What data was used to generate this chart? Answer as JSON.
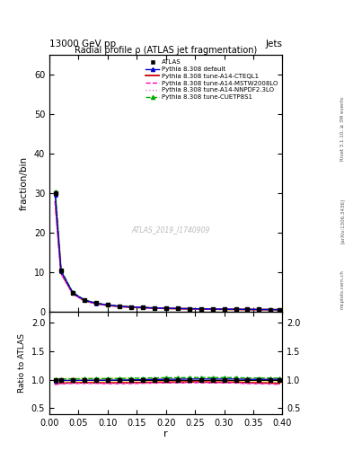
{
  "title": "Radial profile ρ (ATLAS jet fragmentation)",
  "top_left_label": "13000 GeV pp",
  "top_right_label": "Jets",
  "xlabel": "r",
  "ylabel_main": "fraction/bin",
  "ylabel_ratio": "Ratio to ATLAS",
  "watermark": "ATLAS_2019_I1740909",
  "rivet_label": "Rivet 3.1.10, ≥ 3M events",
  "arxiv_label": "[arXiv:1306.3436]",
  "mcplots_label": "mcplots.cern.ch",
  "r_values": [
    0.01,
    0.02,
    0.04,
    0.06,
    0.08,
    0.1,
    0.12,
    0.14,
    0.16,
    0.18,
    0.2,
    0.22,
    0.24,
    0.26,
    0.28,
    0.3,
    0.32,
    0.34,
    0.36,
    0.38,
    0.395
  ],
  "data_y": [
    30.0,
    10.3,
    4.8,
    2.9,
    2.1,
    1.65,
    1.35,
    1.15,
    1.0,
    0.9,
    0.82,
    0.76,
    0.7,
    0.65,
    0.62,
    0.58,
    0.55,
    0.53,
    0.51,
    0.49,
    0.47
  ],
  "data_err": [
    0.5,
    0.15,
    0.08,
    0.05,
    0.035,
    0.03,
    0.025,
    0.02,
    0.018,
    0.015,
    0.014,
    0.012,
    0.011,
    0.01,
    0.01,
    0.009,
    0.009,
    0.008,
    0.008,
    0.007,
    0.007
  ],
  "pythia_default_y": [
    29.5,
    10.2,
    4.75,
    2.88,
    2.09,
    1.64,
    1.345,
    1.148,
    1.005,
    0.905,
    0.828,
    0.768,
    0.71,
    0.66,
    0.628,
    0.588,
    0.558,
    0.534,
    0.514,
    0.494,
    0.474
  ],
  "pythia_cteql1_y": [
    27.8,
    9.7,
    4.55,
    2.75,
    1.99,
    1.56,
    1.28,
    1.09,
    0.953,
    0.86,
    0.786,
    0.729,
    0.674,
    0.626,
    0.594,
    0.556,
    0.527,
    0.503,
    0.483,
    0.462,
    0.44
  ],
  "pythia_mstw_y": [
    27.5,
    9.6,
    4.5,
    2.72,
    1.97,
    1.54,
    1.26,
    1.075,
    0.94,
    0.848,
    0.775,
    0.718,
    0.664,
    0.617,
    0.585,
    0.548,
    0.519,
    0.495,
    0.475,
    0.454,
    0.433
  ],
  "pythia_nnpdf_y": [
    27.5,
    9.6,
    4.5,
    2.72,
    1.97,
    1.54,
    1.26,
    1.075,
    0.94,
    0.848,
    0.775,
    0.718,
    0.664,
    0.617,
    0.585,
    0.548,
    0.519,
    0.495,
    0.475,
    0.454,
    0.433
  ],
  "pythia_cuetp_y": [
    30.5,
    10.45,
    4.88,
    2.96,
    2.15,
    1.685,
    1.382,
    1.182,
    1.033,
    0.93,
    0.85,
    0.788,
    0.728,
    0.677,
    0.644,
    0.603,
    0.572,
    0.547,
    0.526,
    0.505,
    0.484
  ],
  "color_data": "#000000",
  "color_default": "#0000cc",
  "color_cteql1": "#cc0000",
  "color_mstw": "#ff00bb",
  "color_nnpdf": "#dd77cc",
  "color_cuetp": "#00aa00",
  "ylim_main": [
    0,
    65
  ],
  "ylim_ratio": [
    0.4,
    2.2
  ],
  "yticks_main": [
    0,
    10,
    20,
    30,
    40,
    50,
    60
  ],
  "yticks_ratio": [
    0.5,
    1.0,
    1.5,
    2.0
  ],
  "background_color": "#ffffff",
  "shade_color": "#eeee88"
}
